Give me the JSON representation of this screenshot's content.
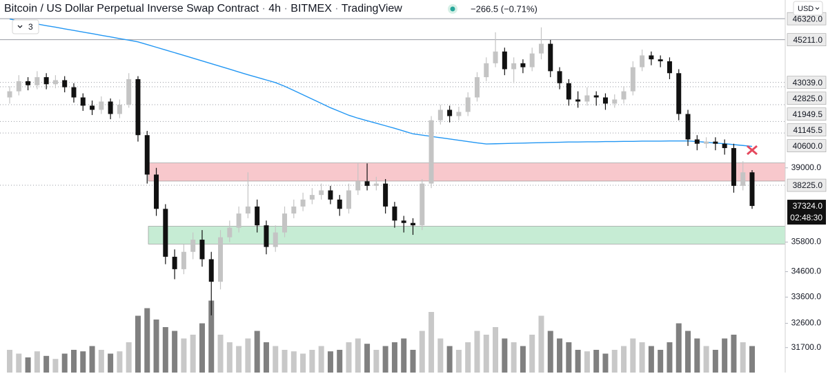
{
  "header": {
    "symbol": "Bitcoin / US Dollar Perpetual Inverse Swap Contract",
    "interval": "4h",
    "exchange": "BITMEX",
    "source": "TradingView",
    "change": "−266.5 (−0.71%)",
    "indicators": "3",
    "currency": "USD"
  },
  "chart_data": {
    "type": "candlestick",
    "log_scale": true,
    "ylim": [
      30800,
      47330
    ],
    "yticks": [
      {
        "value": 39000,
        "label": "39000.0"
      },
      {
        "value": 35800,
        "label": "35800.0"
      },
      {
        "value": 34600,
        "label": "34600.0"
      },
      {
        "value": 33600,
        "label": "33600.0"
      },
      {
        "value": 32600,
        "label": "32600.0"
      },
      {
        "value": 31700,
        "label": "31700.0"
      }
    ],
    "up_color": "#c4c4c4",
    "down_color": "#111111",
    "candles": {
      "open": [
        42300,
        42600,
        43100,
        42900,
        43300,
        42950,
        43150,
        42800,
        42300,
        41900,
        41700,
        42100,
        41500,
        41950,
        43200,
        40500,
        38700,
        37200,
        35200,
        34700,
        35400,
        35900,
        35100,
        34200,
        36000,
        36400,
        37000,
        37300,
        36500,
        35600,
        36200,
        37000,
        37300,
        37600,
        37800,
        38000,
        37600,
        37200,
        38000,
        38400,
        38200,
        38300,
        37300,
        36700,
        36600,
        36500,
        38300,
        41200,
        41700,
        41400,
        41600,
        42300,
        43300,
        44000,
        44600,
        43700,
        44000,
        43800,
        44500,
        45000,
        43600,
        43000,
        42200,
        42100,
        42400,
        42300,
        42000,
        42200,
        42600,
        43800,
        44400,
        44200,
        44100,
        43500,
        41500,
        40300,
        40100,
        40200,
        40100,
        39900,
        38200,
        38800
      ],
      "high": [
        42850,
        43400,
        43300,
        43600,
        43500,
        43400,
        43350,
        43000,
        42500,
        42150,
        42350,
        42250,
        42200,
        43500,
        43350,
        40700,
        39000,
        37400,
        35500,
        35700,
        36200,
        36300,
        35400,
        36300,
        36700,
        37300,
        38800,
        37600,
        36700,
        36500,
        37300,
        37600,
        37900,
        38100,
        38300,
        38200,
        37800,
        38300,
        39200,
        39200,
        38600,
        38500,
        37500,
        36900,
        36800,
        38500,
        41400,
        41950,
        41900,
        41850,
        42550,
        43550,
        44300,
        45600,
        44800,
        44300,
        44200,
        44800,
        45860,
        45200,
        43800,
        43200,
        42600,
        42800,
        42600,
        42500,
        42450,
        42850,
        44100,
        44700,
        44600,
        44400,
        44300,
        43700,
        41700,
        40500,
        40400,
        40400,
        40300,
        40100,
        39300,
        38900
      ],
      "low": [
        42000,
        42400,
        42650,
        42700,
        42700,
        42750,
        42550,
        42050,
        41650,
        41450,
        41500,
        41250,
        41300,
        41800,
        40200,
        38300,
        36900,
        34900,
        34300,
        34500,
        35100,
        34800,
        32900,
        33900,
        35800,
        36200,
        36800,
        36200,
        35300,
        35400,
        36000,
        36800,
        37100,
        37400,
        37600,
        37400,
        36900,
        37000,
        37800,
        38000,
        38000,
        37000,
        36400,
        36200,
        36100,
        36300,
        38100,
        41000,
        41100,
        41200,
        41400,
        42100,
        43100,
        43800,
        43400,
        43000,
        43500,
        43600,
        44200,
        43300,
        42700,
        41900,
        41800,
        41900,
        41900,
        41700,
        41800,
        42000,
        42400,
        43600,
        43900,
        43800,
        43200,
        41200,
        40000,
        39800,
        39900,
        39800,
        39600,
        37900,
        38000,
        37200
      ],
      "close": [
        42600,
        43100,
        42900,
        43300,
        42950,
        43150,
        42800,
        42300,
        41900,
        41700,
        42100,
        41500,
        41950,
        43200,
        40500,
        38700,
        37200,
        35200,
        34700,
        35400,
        35900,
        35100,
        34200,
        36000,
        36400,
        37000,
        37300,
        36500,
        35600,
        36200,
        37000,
        37300,
        37600,
        37800,
        38000,
        37600,
        37200,
        38000,
        38400,
        38200,
        38300,
        37300,
        36700,
        36600,
        36500,
        38300,
        41200,
        41700,
        41400,
        41600,
        42300,
        43300,
        44000,
        44600,
        43700,
        44000,
        43800,
        44500,
        45000,
        43600,
        43000,
        42200,
        42100,
        42400,
        42300,
        42000,
        42200,
        42600,
        43800,
        44400,
        44200,
        44100,
        43500,
        41500,
        40300,
        40100,
        40200,
        40100,
        39900,
        38200,
        38800,
        37324
      ]
    },
    "volume": [
      30,
      25,
      20,
      28,
      22,
      18,
      25,
      30,
      28,
      35,
      30,
      25,
      28,
      40,
      75,
      85,
      70,
      60,
      55,
      45,
      50,
      65,
      95,
      50,
      40,
      35,
      45,
      55,
      40,
      35,
      30,
      28,
      25,
      30,
      35,
      28,
      30,
      40,
      45,
      38,
      30,
      35,
      40,
      45,
      30,
      55,
      80,
      45,
      35,
      30,
      40,
      55,
      50,
      60,
      45,
      40,
      35,
      50,
      75,
      55,
      45,
      40,
      30,
      28,
      30,
      25,
      30,
      35,
      45,
      40,
      35,
      30,
      40,
      65,
      55,
      45,
      35,
      30,
      45,
      50,
      40,
      35
    ],
    "vlim": [
      0,
      100
    ],
    "volume_up_color": "#c8c8c8",
    "volume_down_color": "#808080",
    "ma": [
      46300,
      46210,
      46120,
      46040,
      45950,
      45870,
      45780,
      45700,
      45610,
      45530,
      45440,
      45360,
      45270,
      45190,
      45100,
      44960,
      44820,
      44680,
      44540,
      44400,
      44260,
      44120,
      43980,
      43840,
      43700,
      43560,
      43420,
      43290,
      43160,
      43030,
      42850,
      42640,
      42430,
      42220,
      42010,
      41800,
      41620,
      41440,
      41300,
      41180,
      41060,
      40940,
      40820,
      40690,
      40560,
      40500,
      40440,
      40380,
      40320,
      40260,
      40200,
      40140,
      40090,
      40100,
      40110,
      40120,
      40130,
      40140,
      40150,
      40160,
      40170,
      40180,
      40180,
      40190,
      40190,
      40200,
      40200,
      40210,
      40210,
      40220,
      40220,
      40220,
      40230,
      40230,
      40230,
      40200,
      40170,
      40130,
      40100,
      40060,
      40020,
      39980
    ],
    "ma_color": "#2196f3",
    "zones": [
      {
        "top": 39220,
        "bottom": 38410,
        "color": "#f8c8cc"
      },
      {
        "top": 36460,
        "bottom": 35720,
        "color": "#c6ecd4"
      }
    ],
    "levels": [
      {
        "value": 46320,
        "label": "46320.0",
        "style": "solid"
      },
      {
        "value": 45211,
        "label": "45211.0",
        "style": "solid"
      },
      {
        "value": 43039,
        "label": "43039.0",
        "style": "dotted"
      },
      {
        "value": 42825,
        "label": "42825.0",
        "style": "dotted"
      },
      {
        "value": 41949.5,
        "label": "41949.5",
        "style": "dotted"
      },
      {
        "value": 41145.5,
        "label": "41145.5",
        "style": "dotted"
      },
      {
        "value": 40600,
        "label": "40600.0",
        "style": "dotted"
      },
      {
        "value": 38225,
        "label": "38225.0",
        "style": "dotted"
      }
    ],
    "last_price": {
      "value": 37324,
      "label": "37324.0"
    },
    "countdown": "02:48:30"
  }
}
